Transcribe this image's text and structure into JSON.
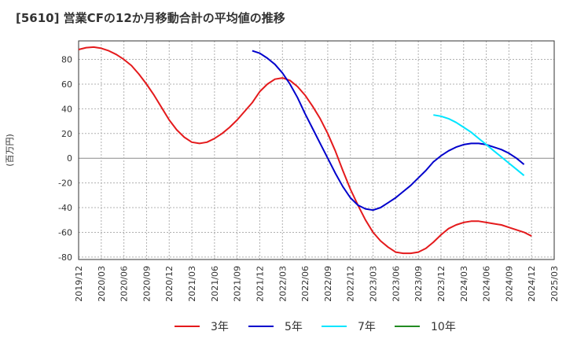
{
  "chart_data": {
    "type": "line",
    "title": "[5610]  営業CFの12か月移動合計の平均値の推移",
    "ylabel": "(百万円)",
    "xlabel": "",
    "ylim": [
      -82,
      95
    ],
    "yticks": [
      -80,
      -60,
      -40,
      -20,
      0,
      20,
      40,
      60,
      80
    ],
    "xticks": [
      "2019/12",
      "2020/03",
      "2020/06",
      "2020/09",
      "2020/12",
      "2021/03",
      "2021/06",
      "2021/09",
      "2021/12",
      "2022/03",
      "2022/06",
      "2022/09",
      "2022/12",
      "2023/03",
      "2023/06",
      "2023/09",
      "2023/12",
      "2024/03",
      "2024/06",
      "2024/09",
      "2024/12",
      "2025/03"
    ],
    "grid": true,
    "legend_position": "bottom",
    "series": [
      {
        "name": "3年",
        "color": "#e41a1c",
        "points": [
          [
            "2019/12",
            88
          ],
          [
            "2020/01",
            89.5
          ],
          [
            "2020/02",
            90
          ],
          [
            "2020/03",
            89
          ],
          [
            "2020/04",
            87
          ],
          [
            "2020/05",
            84
          ],
          [
            "2020/06",
            80
          ],
          [
            "2020/07",
            75
          ],
          [
            "2020/08",
            68
          ],
          [
            "2020/09",
            60
          ],
          [
            "2020/10",
            51
          ],
          [
            "2020/11",
            41
          ],
          [
            "2020/12",
            31
          ],
          [
            "2021/01",
            23
          ],
          [
            "2021/02",
            17
          ],
          [
            "2021/03",
            13
          ],
          [
            "2021/04",
            12
          ],
          [
            "2021/05",
            13
          ],
          [
            "2021/06",
            16
          ],
          [
            "2021/07",
            20
          ],
          [
            "2021/08",
            25
          ],
          [
            "2021/09",
            31
          ],
          [
            "2021/10",
            38
          ],
          [
            "2021/11",
            45
          ],
          [
            "2021/12",
            54
          ],
          [
            "2022/01",
            60
          ],
          [
            "2022/02",
            64
          ],
          [
            "2022/03",
            65
          ],
          [
            "2022/04",
            63
          ],
          [
            "2022/05",
            58
          ],
          [
            "2022/06",
            51
          ],
          [
            "2022/07",
            42
          ],
          [
            "2022/08",
            32
          ],
          [
            "2022/09",
            20
          ],
          [
            "2022/10",
            6
          ],
          [
            "2022/11",
            -10
          ],
          [
            "2022/12",
            -25
          ],
          [
            "2023/01",
            -38
          ],
          [
            "2023/02",
            -50
          ],
          [
            "2023/03",
            -60
          ],
          [
            "2023/04",
            -67
          ],
          [
            "2023/05",
            -72
          ],
          [
            "2023/06",
            -76
          ],
          [
            "2023/07",
            -77
          ],
          [
            "2023/08",
            -77
          ],
          [
            "2023/09",
            -76
          ],
          [
            "2023/10",
            -73
          ],
          [
            "2023/11",
            -68
          ],
          [
            "2023/12",
            -62
          ],
          [
            "2024/01",
            -57
          ],
          [
            "2024/02",
            -54
          ],
          [
            "2024/03",
            -52
          ],
          [
            "2024/04",
            -51
          ],
          [
            "2024/05",
            -51
          ],
          [
            "2024/06",
            -52
          ],
          [
            "2024/07",
            -53
          ],
          [
            "2024/08",
            -54
          ],
          [
            "2024/09",
            -56
          ],
          [
            "2024/10",
            -58
          ],
          [
            "2024/11",
            -60
          ],
          [
            "2024/12",
            -63
          ]
        ]
      },
      {
        "name": "5年",
        "color": "#0000cc",
        "points": [
          [
            "2021/11",
            87
          ],
          [
            "2021/12",
            85
          ],
          [
            "2022/01",
            81
          ],
          [
            "2022/02",
            76
          ],
          [
            "2022/03",
            69
          ],
          [
            "2022/04",
            60
          ],
          [
            "2022/05",
            49
          ],
          [
            "2022/06",
            36
          ],
          [
            "2022/07",
            24
          ],
          [
            "2022/08",
            12
          ],
          [
            "2022/09",
            0
          ],
          [
            "2022/10",
            -12
          ],
          [
            "2022/11",
            -23
          ],
          [
            "2022/12",
            -32
          ],
          [
            "2023/01",
            -38
          ],
          [
            "2023/02",
            -41
          ],
          [
            "2023/03",
            -42
          ],
          [
            "2023/04",
            -40
          ],
          [
            "2023/05",
            -36
          ],
          [
            "2023/06",
            -32
          ],
          [
            "2023/07",
            -27
          ],
          [
            "2023/08",
            -22
          ],
          [
            "2023/09",
            -16
          ],
          [
            "2023/10",
            -10
          ],
          [
            "2023/11",
            -3
          ],
          [
            "2023/12",
            2
          ],
          [
            "2024/01",
            6
          ],
          [
            "2024/02",
            9
          ],
          [
            "2024/03",
            11
          ],
          [
            "2024/04",
            12
          ],
          [
            "2024/05",
            12
          ],
          [
            "2024/06",
            11
          ],
          [
            "2024/07",
            9
          ],
          [
            "2024/08",
            7
          ],
          [
            "2024/09",
            4
          ],
          [
            "2024/10",
            0
          ],
          [
            "2024/11",
            -5
          ]
        ]
      },
      {
        "name": "7年",
        "color": "#00e5ff",
        "points": [
          [
            "2023/11",
            35
          ],
          [
            "2023/12",
            34
          ],
          [
            "2024/01",
            32
          ],
          [
            "2024/02",
            29
          ],
          [
            "2024/03",
            25
          ],
          [
            "2024/04",
            21
          ],
          [
            "2024/05",
            16
          ],
          [
            "2024/06",
            11
          ],
          [
            "2024/07",
            6
          ],
          [
            "2024/08",
            1
          ],
          [
            "2024/09",
            -4
          ],
          [
            "2024/10",
            -9
          ],
          [
            "2024/11",
            -14
          ]
        ]
      },
      {
        "name": "10年",
        "color": "#228b22",
        "points": []
      }
    ]
  }
}
